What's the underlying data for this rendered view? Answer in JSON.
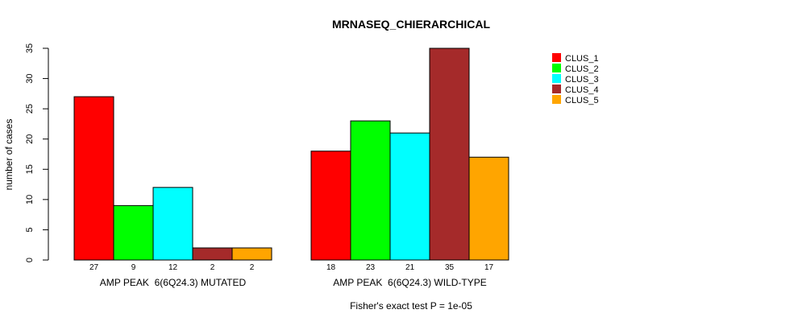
{
  "chart_data": {
    "type": "bar",
    "title": "MRNASEQ_CHIERARCHICAL",
    "ylabel": "number of cases",
    "xlabel": "",
    "ylim": [
      0,
      35
    ],
    "yticks": [
      0,
      5,
      10,
      15,
      20,
      25,
      30,
      35
    ],
    "groups": [
      "AMP PEAK  6(6Q24.3) MUTATED",
      "AMP PEAK  6(6Q24.3) WILD-TYPE"
    ],
    "series": [
      {
        "name": "CLUS_1",
        "color": "#ff0000",
        "values": [
          27,
          18
        ]
      },
      {
        "name": "CLUS_2",
        "color": "#00ff00",
        "values": [
          9,
          23
        ]
      },
      {
        "name": "CLUS_3",
        "color": "#00ffff",
        "values": [
          12,
          21
        ]
      },
      {
        "name": "CLUS_4",
        "color": "#a52a2a",
        "values": [
          2,
          35
        ]
      },
      {
        "name": "CLUS_5",
        "color": "#ffa500",
        "values": [
          2,
          17
        ]
      }
    ],
    "bar_labels": [
      [
        "27",
        "9",
        "12",
        "2",
        "2"
      ],
      [
        "18",
        "23",
        "21",
        "35",
        "17"
      ]
    ],
    "footnote": "Fisher's exact test P = 1e-05",
    "legend_position": "top-right"
  }
}
